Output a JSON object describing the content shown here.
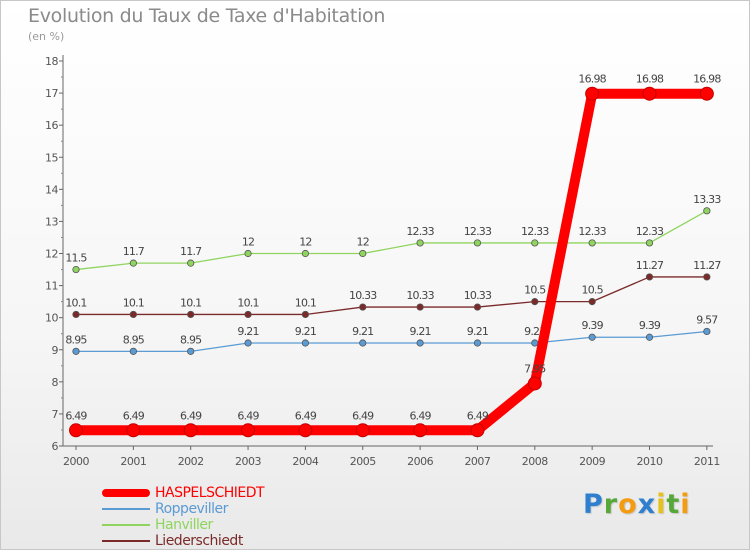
{
  "title": "Evolution du Taux de Taxe d'Habitation",
  "subtitle": "(en %)",
  "brand": {
    "letters": [
      {
        "ch": "P",
        "color": "#2e7fcf"
      },
      {
        "ch": "r",
        "color": "#57a838"
      },
      {
        "ch": "o",
        "color": "#f39c12"
      },
      {
        "ch": "x",
        "color": "#2e7fcf"
      },
      {
        "ch": "i",
        "color": "#e4c21b"
      },
      {
        "ch": "t",
        "color": "#57a838"
      },
      {
        "ch": "i",
        "color": "#f39c12"
      }
    ]
  },
  "chart_data": {
    "type": "line",
    "title": "Evolution du Taux de Taxe d'Habitation",
    "subtitle": "(en %)",
    "xlabel": "",
    "ylabel": "",
    "x": [
      "2000",
      "2001",
      "2002",
      "2003",
      "2004",
      "2005",
      "2006",
      "2007",
      "2008",
      "2009",
      "2010",
      "2011"
    ],
    "ylim": [
      6,
      18
    ],
    "yticks": [
      6,
      7,
      8,
      9,
      10,
      11,
      12,
      13,
      14,
      15,
      16,
      17,
      18
    ],
    "grid": false,
    "legend_position": "bottom-left",
    "series": [
      {
        "name": "HASPELSCHIEDT",
        "color": "#ff0000",
        "values": [
          6.49,
          6.49,
          6.49,
          6.49,
          6.49,
          6.49,
          6.49,
          6.49,
          7.95,
          16.98,
          16.98,
          16.98
        ],
        "labels": [
          "6.49",
          "6.49",
          "6.49",
          "6.49",
          "6.49",
          "6.49",
          "6.49",
          "6.49",
          "7.95",
          "16.98",
          "16.98",
          "16.98"
        ]
      },
      {
        "name": "Roppeviller",
        "color": "#5a9bd4",
        "values": [
          8.95,
          8.95,
          8.95,
          9.21,
          9.21,
          9.21,
          9.21,
          9.21,
          9.21,
          9.39,
          9.39,
          9.57
        ],
        "labels": [
          "8.95",
          "8.95",
          "8.95",
          "9.21",
          "9.21",
          "9.21",
          "9.21",
          "9.21",
          "9.21",
          "9.39",
          "9.39",
          "9.57"
        ]
      },
      {
        "name": "Hanviller",
        "color": "#8fd45f",
        "values": [
          11.5,
          11.7,
          11.7,
          12,
          12,
          12,
          12.33,
          12.33,
          12.33,
          12.33,
          12.33,
          13.33
        ],
        "labels": [
          "11.5",
          "11.7",
          "11.7",
          "12",
          "12",
          "12",
          "12.33",
          "12.33",
          "12.33",
          "12.33",
          "12.33",
          "13.33"
        ]
      },
      {
        "name": "Liederschiedt",
        "color": "#7b2a2a",
        "values": [
          10.1,
          10.1,
          10.1,
          10.1,
          10.1,
          10.33,
          10.33,
          10.33,
          10.5,
          10.5,
          11.27,
          11.27
        ],
        "labels": [
          "10.1",
          "10.1",
          "10.1",
          "10.1",
          "10.1",
          "10.33",
          "10.33",
          "10.33",
          "10.5",
          "10.5",
          "11.27",
          "11.27"
        ]
      }
    ]
  }
}
